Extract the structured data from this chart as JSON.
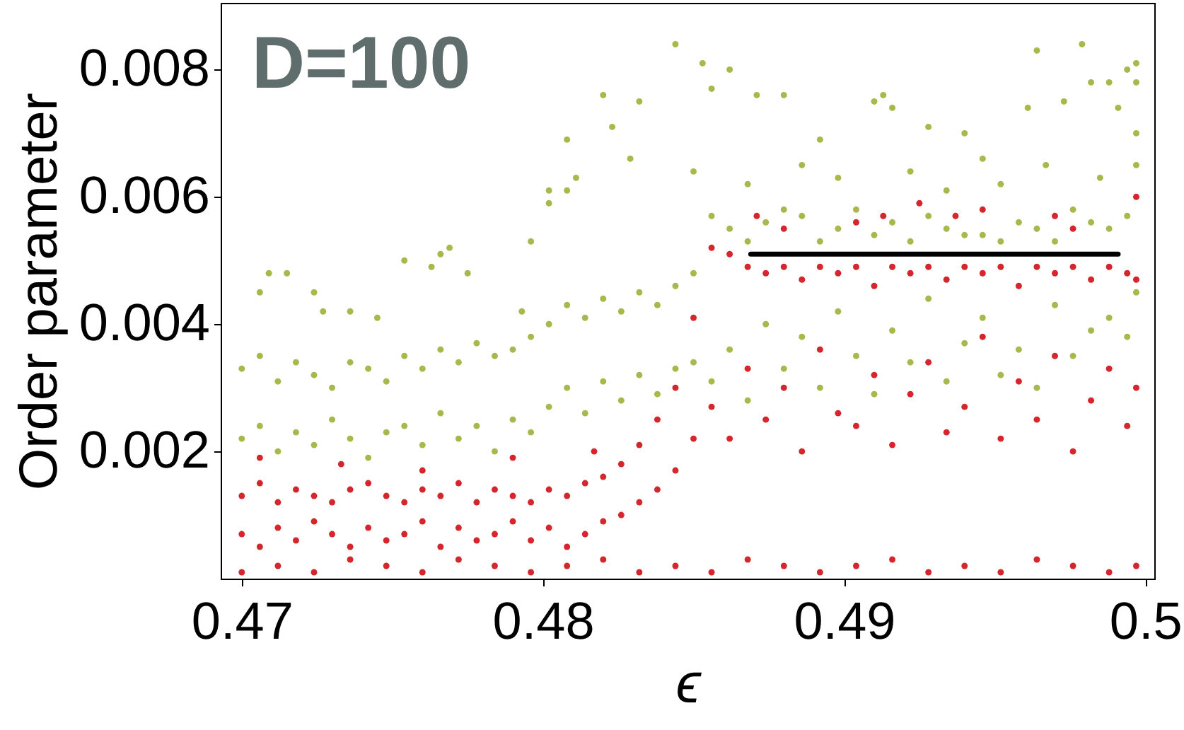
{
  "chart_data": {
    "type": "scatter",
    "annotations": [
      "D=100"
    ],
    "xlabel": "ϵ",
    "ylabel": "Order parameter",
    "xlim": [
      0.4693,
      0.5003
    ],
    "ylim": [
      0,
      0.00905
    ],
    "xticks": [
      0.47,
      0.48,
      0.49,
      0.5
    ],
    "yticks": [
      0.002,
      0.004,
      0.006,
      0.008
    ],
    "marker": "circle",
    "series": [
      {
        "color": "#a9b84b",
        "x": [
          0.47,
          0.4706,
          0.4712,
          0.4718,
          0.4724,
          0.473,
          0.4736,
          0.4742,
          0.4748,
          0.4754,
          0.476,
          0.4766,
          0.4772,
          0.4778,
          0.4784,
          0.479,
          0.4796,
          0.4802,
          0.4808,
          0.4814,
          0.482,
          0.4826,
          0.4832,
          0.4838,
          0.4844,
          0.485,
          0.4856,
          0.4862,
          0.4868,
          0.4874,
          0.488,
          0.4886,
          0.4892,
          0.4898,
          0.4904,
          0.491,
          0.4916,
          0.4922,
          0.4928,
          0.4934,
          0.494,
          0.4946,
          0.4952,
          0.4958,
          0.4964,
          0.497,
          0.4976,
          0.4982,
          0.4988,
          0.4994,
          0.4997,
          0.47,
          0.4706,
          0.4712,
          0.4718,
          0.4724,
          0.473,
          0.4736,
          0.4742,
          0.4748,
          0.4754,
          0.476,
          0.4766,
          0.4772,
          0.4778,
          0.4784,
          0.479,
          0.4796,
          0.4802,
          0.4808,
          0.4814,
          0.482,
          0.4826,
          0.4832,
          0.4838,
          0.4844,
          0.485,
          0.4856,
          0.4862,
          0.4868,
          0.4874,
          0.488,
          0.4886,
          0.4892,
          0.4898,
          0.4904,
          0.491,
          0.4916,
          0.4922,
          0.4928,
          0.4934,
          0.494,
          0.4946,
          0.4952,
          0.4958,
          0.4964,
          0.497,
          0.4976,
          0.4982,
          0.4988,
          0.4994,
          0.4997,
          0.4706,
          0.4709,
          0.4715,
          0.4724,
          0.4727,
          0.4736,
          0.4745,
          0.4754,
          0.4763,
          0.4766,
          0.4769,
          0.4775,
          0.4793,
          0.4796,
          0.4802,
          0.4802,
          0.4808,
          0.4811,
          0.4808,
          0.482,
          0.4823,
          0.4829,
          0.4832,
          0.4844,
          0.485,
          0.4853,
          0.4856,
          0.4862,
          0.4868,
          0.4871,
          0.488,
          0.4886,
          0.4892,
          0.4898,
          0.491,
          0.4913,
          0.4916,
          0.4922,
          0.4928,
          0.4934,
          0.494,
          0.4946,
          0.4952,
          0.4961,
          0.4964,
          0.4967,
          0.4973,
          0.4979,
          0.4982,
          0.4985,
          0.4988,
          0.4991,
          0.4994,
          0.4997,
          0.4997,
          0.4997
        ],
        "values": [
          0.0033,
          0.0035,
          0.0031,
          0.0034,
          0.0032,
          0.003,
          0.0034,
          0.0033,
          0.0031,
          0.0035,
          0.0033,
          0.0036,
          0.0034,
          0.0037,
          0.0035,
          0.0036,
          0.0038,
          0.004,
          0.0043,
          0.0041,
          0.0044,
          0.0042,
          0.0045,
          0.0043,
          0.0046,
          0.0048,
          0.0057,
          0.0055,
          0.0053,
          0.0056,
          0.0058,
          0.0057,
          0.0053,
          0.0055,
          0.0058,
          0.0054,
          0.0056,
          0.0053,
          0.0057,
          0.0055,
          0.0054,
          0.0054,
          0.0053,
          0.0056,
          0.0055,
          0.0053,
          0.0058,
          0.0056,
          0.0055,
          0.0057,
          0.0065,
          0.0022,
          0.0024,
          0.002,
          0.0023,
          0.0021,
          0.0025,
          0.0022,
          0.0019,
          0.0023,
          0.0024,
          0.0021,
          0.0026,
          0.0022,
          0.0024,
          0.002,
          0.0025,
          0.0023,
          0.0027,
          0.003,
          0.0026,
          0.0031,
          0.0028,
          0.0032,
          0.0029,
          0.0033,
          0.0034,
          0.0031,
          0.0036,
          0.0028,
          0.004,
          0.0033,
          0.0038,
          0.003,
          0.0042,
          0.0035,
          0.0029,
          0.0039,
          0.0034,
          0.0044,
          0.0031,
          0.0037,
          0.0041,
          0.0032,
          0.0036,
          0.003,
          0.0043,
          0.0035,
          0.0039,
          0.0041,
          0.0038,
          0.0045,
          0.0045,
          0.0048,
          0.0048,
          0.0045,
          0.0042,
          0.0042,
          0.0041,
          0.005,
          0.0049,
          0.0051,
          0.0052,
          0.0048,
          0.0042,
          0.0053,
          0.0061,
          0.0059,
          0.0069,
          0.0063,
          0.0061,
          0.0076,
          0.0071,
          0.0066,
          0.0075,
          0.0084,
          0.0064,
          0.0081,
          0.0077,
          0.008,
          0.0062,
          0.0076,
          0.0076,
          0.0065,
          0.0069,
          0.0063,
          0.0075,
          0.0076,
          0.0074,
          0.0064,
          0.0071,
          0.0061,
          0.007,
          0.0066,
          0.0062,
          0.0074,
          0.0083,
          0.0065,
          0.0075,
          0.0084,
          0.0078,
          0.0063,
          0.0078,
          0.0074,
          0.008,
          0.0081,
          0.0078,
          0.007
        ]
      },
      {
        "color": "#d4262c",
        "x": [
          0.47,
          0.4706,
          0.4712,
          0.4718,
          0.4724,
          0.473,
          0.4736,
          0.4742,
          0.4748,
          0.4754,
          0.476,
          0.4766,
          0.4772,
          0.4778,
          0.4784,
          0.479,
          0.4796,
          0.4802,
          0.4808,
          0.4814,
          0.482,
          0.4826,
          0.4832,
          0.4838,
          0.4844,
          0.485,
          0.4856,
          0.4862,
          0.4868,
          0.4874,
          0.488,
          0.4886,
          0.4892,
          0.4898,
          0.4904,
          0.491,
          0.4916,
          0.4922,
          0.4928,
          0.4934,
          0.494,
          0.4946,
          0.4952,
          0.4958,
          0.4964,
          0.497,
          0.4976,
          0.4982,
          0.4988,
          0.4994,
          0.4997,
          0.47,
          0.4706,
          0.4712,
          0.4718,
          0.4724,
          0.473,
          0.4736,
          0.4742,
          0.4748,
          0.4754,
          0.476,
          0.4766,
          0.4772,
          0.4778,
          0.4784,
          0.479,
          0.4796,
          0.4802,
          0.4808,
          0.4814,
          0.482,
          0.4826,
          0.4832,
          0.4838,
          0.4844,
          0.485,
          0.4856,
          0.4862,
          0.4868,
          0.4874,
          0.488,
          0.4886,
          0.4892,
          0.4898,
          0.4904,
          0.491,
          0.4916,
          0.4922,
          0.4928,
          0.4934,
          0.494,
          0.4946,
          0.4952,
          0.4958,
          0.4964,
          0.497,
          0.4976,
          0.4982,
          0.4988,
          0.4994,
          0.4997,
          0.47,
          0.4712,
          0.4724,
          0.4736,
          0.4748,
          0.476,
          0.4772,
          0.4784,
          0.4796,
          0.4808,
          0.482,
          0.4832,
          0.4844,
          0.4856,
          0.4868,
          0.488,
          0.4892,
          0.4904,
          0.4916,
          0.4928,
          0.494,
          0.4952,
          0.4964,
          0.4976,
          0.4988,
          0.4997,
          0.4706,
          0.4733,
          0.476,
          0.479,
          0.4817,
          0.4871,
          0.488,
          0.4904,
          0.4913,
          0.4925,
          0.4937,
          0.4946,
          0.497,
          0.4976,
          0.4997
        ],
        "values": [
          0.0013,
          0.0015,
          0.0012,
          0.0014,
          0.0013,
          0.0012,
          0.0014,
          0.0015,
          0.0013,
          0.0012,
          0.0014,
          0.0013,
          0.0015,
          0.0012,
          0.0014,
          0.0013,
          0.0012,
          0.0014,
          0.0013,
          0.0015,
          0.0016,
          0.0018,
          0.0021,
          0.0025,
          0.003,
          0.0041,
          0.0052,
          0.0051,
          0.0049,
          0.0048,
          0.0049,
          0.0047,
          0.0049,
          0.0048,
          0.0049,
          0.0046,
          0.0049,
          0.0048,
          0.0049,
          0.0047,
          0.0049,
          0.0048,
          0.0049,
          0.0046,
          0.0049,
          0.0048,
          0.0049,
          0.0047,
          0.0049,
          0.0048,
          0.0047,
          0.0007,
          0.0005,
          0.0008,
          0.0006,
          0.0009,
          0.0007,
          0.0005,
          0.0008,
          0.0006,
          0.0007,
          0.0009,
          0.0005,
          0.0008,
          0.0006,
          0.0007,
          0.0009,
          0.0006,
          0.0008,
          0.0005,
          0.0007,
          0.0009,
          0.001,
          0.0012,
          0.0014,
          0.0017,
          0.0022,
          0.0027,
          0.0022,
          0.0033,
          0.0025,
          0.003,
          0.002,
          0.0036,
          0.0026,
          0.0024,
          0.0032,
          0.0021,
          0.0029,
          0.0034,
          0.0023,
          0.0027,
          0.0038,
          0.0022,
          0.0031,
          0.0025,
          0.0035,
          0.002,
          0.0028,
          0.0033,
          0.0024,
          0.003,
          0.0001,
          0.0002,
          0.0001,
          0.0003,
          0.0002,
          0.0001,
          0.0003,
          0.0002,
          0.0001,
          0.0002,
          0.0003,
          0.0001,
          0.0002,
          0.0001,
          0.0003,
          0.0002,
          0.0001,
          0.0002,
          0.0003,
          0.0001,
          0.0002,
          0.0001,
          0.0003,
          0.0002,
          0.0001,
          0.0002,
          0.0019,
          0.0018,
          0.0017,
          0.0019,
          0.002,
          0.0057,
          0.0055,
          0.0056,
          0.0057,
          0.0059,
          0.0057,
          0.0058,
          0.0057,
          0.0055,
          0.006
        ]
      },
      {
        "type": "line",
        "marker": "none",
        "color": "#000000",
        "x": [
          0.4869,
          0.4991
        ],
        "values": [
          0.0051,
          0.0051
        ]
      }
    ]
  }
}
